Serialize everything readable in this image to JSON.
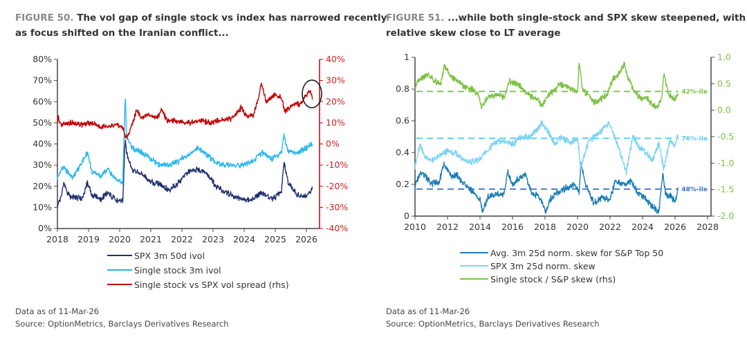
{
  "chart_data": [
    {
      "type": "line",
      "figure_label": "FIGURE 50.",
      "title_line1": "The vol gap of single stock vs index has narrowed recently",
      "title_line2": "as focus shifted on the Iranian conflict...",
      "xlim": [
        2018,
        2026.6
      ],
      "x_ticks": [
        "2018",
        "2019",
        "2020",
        "2021",
        "2022",
        "2023",
        "2024",
        "2025",
        "2026"
      ],
      "ylim_left": [
        0,
        80
      ],
      "y_ticks_left": [
        "0%",
        "10%",
        "20%",
        "30%",
        "40%",
        "50%",
        "60%",
        "70%",
        "80%"
      ],
      "ylim_right": [
        -40,
        40
      ],
      "y_ticks_right": [
        "-40%",
        "-30%",
        "-20%",
        "-10%",
        "0%",
        "10%",
        "20%",
        "30%",
        "40%"
      ],
      "annotation": "circle around latest spread values",
      "series": [
        {
          "name": "SPX 3m 50d ivol",
          "axis": "left",
          "color": "#1f2f6e",
          "x": [
            2018,
            2018.1,
            2018.2,
            2018.4,
            2018.8,
            2018.97,
            2019.1,
            2019.4,
            2019.6,
            2019.9,
            2020.1,
            2020.18,
            2020.22,
            2020.4,
            2020.7,
            2021.0,
            2021.3,
            2021.6,
            2021.9,
            2022.2,
            2022.5,
            2022.8,
            2023.1,
            2023.3,
            2023.6,
            2023.9,
            2024.2,
            2024.6,
            2024.9,
            2025.2,
            2025.28,
            2025.4,
            2025.7,
            2026.0,
            2026.19
          ],
          "y": [
            11,
            14,
            21,
            15,
            14,
            22,
            16,
            14,
            17,
            13,
            13,
            43,
            36,
            28,
            26,
            22,
            21,
            18,
            22,
            27,
            28,
            26,
            20,
            18,
            16,
            14,
            13,
            17,
            14,
            17,
            32,
            22,
            16,
            15,
            19
          ]
        },
        {
          "name": "Single stock 3m ivol",
          "axis": "left",
          "color": "#29b6f0",
          "x": [
            2018,
            2018.1,
            2018.2,
            2018.5,
            2018.97,
            2019.1,
            2019.4,
            2019.6,
            2019.9,
            2020.1,
            2020.18,
            2020.22,
            2020.4,
            2020.7,
            2021.0,
            2021.3,
            2021.6,
            2021.9,
            2022.2,
            2022.5,
            2022.8,
            2023.1,
            2023.5,
            2023.9,
            2024.2,
            2024.6,
            2024.9,
            2025.2,
            2025.28,
            2025.4,
            2025.7,
            2026.0,
            2026.19
          ],
          "y": [
            24,
            27,
            29,
            24,
            36,
            27,
            25,
            28,
            23,
            22,
            64,
            44,
            38,
            36,
            33,
            30,
            30,
            32,
            35,
            38,
            35,
            31,
            30,
            30,
            31,
            36,
            33,
            36,
            44,
            37,
            36,
            38,
            40
          ]
        },
        {
          "name": "Single stock vs SPX vol spread (rhs)",
          "axis": "right",
          "color": "#c00000",
          "x": [
            2018,
            2018.02,
            2018.1,
            2018.4,
            2018.8,
            2019.1,
            2019.5,
            2019.9,
            2020.1,
            2020.18,
            2020.3,
            2020.55,
            2020.7,
            2020.9,
            2021.2,
            2021.35,
            2021.5,
            2021.8,
            2022.2,
            2022.6,
            2022.9,
            2023.2,
            2023.6,
            2023.9,
            2024.1,
            2024.3,
            2024.45,
            2024.55,
            2024.7,
            2025.0,
            2025.2,
            2025.3,
            2025.5,
            2025.8,
            2026.0,
            2026.12,
            2026.19
          ],
          "y": [
            10,
            13,
            9,
            10,
            9,
            10,
            8,
            9,
            8,
            3,
            5,
            16,
            12,
            14,
            12,
            17,
            11,
            11,
            10,
            11,
            10,
            11,
            12,
            17,
            13,
            14,
            21,
            29,
            20,
            23,
            22,
            15,
            18,
            19,
            23,
            25,
            21
          ]
        }
      ]
    },
    {
      "type": "line",
      "figure_label": "FIGURE 51.",
      "title_line1": "...while both single-stock and SPX skew steepened, with",
      "title_line2": "relative skew close to LT average",
      "xlim": [
        2010,
        2028
      ],
      "x_ticks": [
        "2010",
        "2012",
        "2014",
        "2016",
        "2018",
        "2020",
        "2022",
        "2024",
        "2026",
        "2028"
      ],
      "ylim_left": [
        0,
        1
      ],
      "y_ticks_left": [
        "0",
        "0.2",
        "0.4",
        "0.6",
        "0.8",
        "1"
      ],
      "ylim_right": [
        -2.0,
        1.0
      ],
      "y_ticks_right": [
        "-2.0",
        "-1.5",
        "-1.0",
        "-0.5",
        "0.0",
        "0.5",
        "1.0"
      ],
      "reference_lines": [
        {
          "label": "42%-ile",
          "value_left": 0.785,
          "color": "#7cc142"
        },
        {
          "label": "76%-ile",
          "value_left": 0.49,
          "color": "#5bc8f0"
        },
        {
          "label": "48%-ile",
          "value_left": 0.17,
          "color": "#3d6fc4"
        }
      ],
      "series": [
        {
          "name": "Avg. 3m 25d norm. skew for S&P Top 50",
          "axis": "left",
          "color": "#1a7db3",
          "x": [
            2010,
            2010.3,
            2010.6,
            2011,
            2011.5,
            2011.8,
            2012.2,
            2012.6,
            2013,
            2013.5,
            2014,
            2014.15,
            2014.5,
            2015,
            2015.5,
            2015.7,
            2016,
            2016.5,
            2016.8,
            2017.2,
            2017.6,
            2018.05,
            2018.4,
            2018.8,
            2019.3,
            2019.8,
            2020.1,
            2020.2,
            2020.5,
            2021,
            2021.5,
            2022,
            2022.3,
            2022.8,
            2023.3,
            2023.7,
            2024.1,
            2024.5,
            2025,
            2025.25,
            2025.4,
            2025.8,
            2026.0,
            2026.19
          ],
          "y": [
            0.19,
            0.27,
            0.26,
            0.2,
            0.22,
            0.33,
            0.25,
            0.26,
            0.2,
            0.16,
            0.1,
            0.03,
            0.12,
            0.14,
            0.14,
            0.28,
            0.2,
            0.25,
            0.26,
            0.14,
            0.13,
            0.03,
            0.12,
            0.15,
            0.18,
            0.2,
            0.15,
            0.33,
            0.2,
            0.08,
            0.12,
            0.1,
            0.22,
            0.2,
            0.22,
            0.15,
            0.12,
            0.07,
            0.03,
            0.28,
            0.14,
            0.12,
            0.09,
            0.17
          ]
        },
        {
          "name": "SPX 3m 25d norm. skew",
          "axis": "left",
          "color": "#7dd3f5",
          "x": [
            2010,
            2010.3,
            2010.6,
            2011,
            2011.5,
            2012,
            2012.5,
            2013,
            2013.5,
            2014,
            2014.5,
            2015,
            2015.5,
            2016,
            2016.5,
            2017,
            2017.5,
            2017.8,
            2018.2,
            2018.6,
            2019,
            2019.5,
            2020,
            2020.2,
            2020.6,
            2021,
            2021.6,
            2021.9,
            2022.3,
            2022.8,
            2023.0,
            2023.4,
            2023.8,
            2024.2,
            2024.6,
            2025,
            2025.3,
            2025.7,
            2026,
            2026.19
          ],
          "y": [
            0.31,
            0.45,
            0.38,
            0.35,
            0.38,
            0.41,
            0.4,
            0.35,
            0.34,
            0.36,
            0.42,
            0.47,
            0.47,
            0.45,
            0.5,
            0.5,
            0.54,
            0.59,
            0.53,
            0.45,
            0.5,
            0.46,
            0.49,
            0.3,
            0.45,
            0.5,
            0.55,
            0.59,
            0.5,
            0.34,
            0.28,
            0.5,
            0.43,
            0.4,
            0.35,
            0.46,
            0.3,
            0.48,
            0.44,
            0.51
          ]
        },
        {
          "name": "Single stock / S&P skew (rhs)",
          "axis": "right",
          "color": "#7cc142",
          "x": [
            2010,
            2010.4,
            2010.8,
            2011.2,
            2011.6,
            2011.8,
            2012.2,
            2012.6,
            2013,
            2013.5,
            2013.9,
            2014.1,
            2014.5,
            2015,
            2015.5,
            2015.8,
            2016.3,
            2016.8,
            2017.2,
            2017.6,
            2017.8,
            2018.2,
            2018.5,
            2018.9,
            2019.3,
            2019.7,
            2020.0,
            2020.1,
            2020.3,
            2020.6,
            2021.0,
            2021.4,
            2021.8,
            2022.2,
            2022.6,
            2022.9,
            2023.1,
            2023.5,
            2023.9,
            2024.2,
            2024.6,
            2024.9,
            2025.2,
            2025.3,
            2025.6,
            2026.0,
            2026.19
          ],
          "y": [
            0.45,
            0.6,
            0.7,
            0.55,
            0.5,
            0.85,
            0.65,
            0.55,
            0.45,
            0.4,
            0.3,
            0.05,
            0.25,
            0.3,
            0.25,
            0.55,
            0.5,
            0.35,
            0.25,
            0.2,
            0.05,
            0.3,
            0.35,
            0.5,
            0.45,
            0.4,
            0.35,
            0.9,
            0.4,
            0.3,
            0.15,
            0.2,
            0.3,
            0.6,
            0.7,
            0.88,
            0.6,
            0.35,
            0.2,
            0.25,
            0.1,
            0.05,
            0.25,
            0.7,
            0.3,
            0.2,
            0.32
          ]
        }
      ]
    }
  ],
  "left_legend": [
    "SPX 3m 50d ivol",
    "Single stock 3m ivol",
    "Single stock vs SPX vol spread (rhs)"
  ],
  "right_legend": [
    "Avg. 3m 25d norm. skew for S&P Top 50",
    "SPX 3m 25d norm. skew",
    "Single stock / S&P skew (rhs)"
  ],
  "notes": {
    "left_date": "Data as of 11-Mar-26",
    "left_source": "Source: OptionMetrics, Barclays Derivatives Research",
    "right_date": "Data as of 11-Mar-26",
    "right_source": "Source: OptionMetrics, Barclays Derivatives Research"
  }
}
